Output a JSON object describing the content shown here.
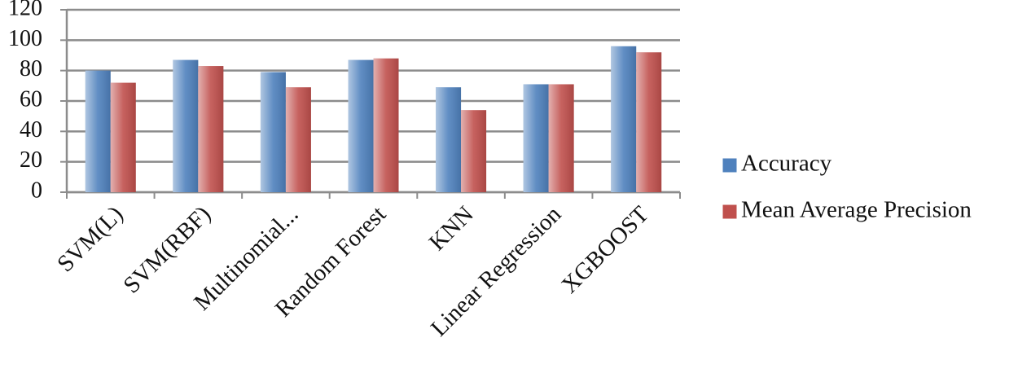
{
  "chart_data": {
    "type": "bar",
    "categories": [
      "SVM(L)",
      "SVM(RBF)",
      "Multinomial...",
      "Random Forest",
      "KNN",
      "Linear Regression",
      "XGBOOST"
    ],
    "series": [
      {
        "name": "Accuracy",
        "color": "#4f81bd",
        "values": [
          80,
          87,
          79,
          87,
          69,
          71,
          96
        ]
      },
      {
        "name": "Mean Average Precision",
        "color": "#c0504d",
        "values": [
          72,
          83,
          69,
          88,
          54,
          71,
          92
        ]
      }
    ],
    "ylim": [
      0,
      120
    ],
    "yticks": [
      0,
      20,
      40,
      60,
      80,
      100,
      120
    ],
    "grid": true,
    "legend": "right"
  }
}
